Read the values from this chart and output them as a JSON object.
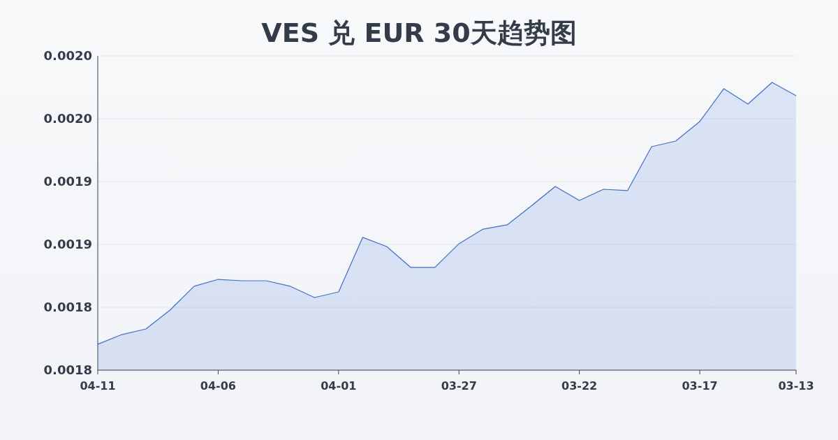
{
  "chart_data": {
    "type": "area",
    "title": "VES 兑 EUR 30天趋势图",
    "categories": [
      "04-11",
      null,
      null,
      null,
      null,
      "04-06",
      null,
      null,
      null,
      null,
      "04-01",
      null,
      null,
      null,
      null,
      "03-27",
      null,
      null,
      null,
      null,
      "03-22",
      null,
      null,
      null,
      null,
      "03-17",
      null,
      null,
      null,
      "03-13"
    ],
    "series": [
      {
        "color": "#3b6fd6",
        "values": [
          0.0017706,
          0.0017783,
          0.0017828,
          0.0017978,
          0.0018167,
          0.0018222,
          0.0018211,
          0.0018211,
          0.0018167,
          0.0018078,
          0.0018122,
          0.0018556,
          0.0018483,
          0.0018317,
          0.0018317,
          0.0018506,
          0.0018622,
          0.0018656,
          0.0018806,
          0.0018961,
          0.001885,
          0.0018939,
          0.0018928,
          0.0019278,
          0.0019322,
          0.0019478,
          0.0019739,
          0.0019617,
          0.0019789,
          0.0019683
        ]
      }
    ],
    "ylim": [
      0.00175,
      0.002
    ],
    "yticks": [
      {
        "value": 0.00175,
        "label": "0.0018"
      },
      {
        "value": 0.0018,
        "label": "0.0018"
      },
      {
        "value": 0.00185,
        "label": "0.0019"
      },
      {
        "value": 0.0019,
        "label": "0.0019"
      },
      {
        "value": 0.00195,
        "label": "0.0020"
      },
      {
        "value": 0.002,
        "label": "0.0020"
      }
    ],
    "grid": "y",
    "marker": "none"
  }
}
